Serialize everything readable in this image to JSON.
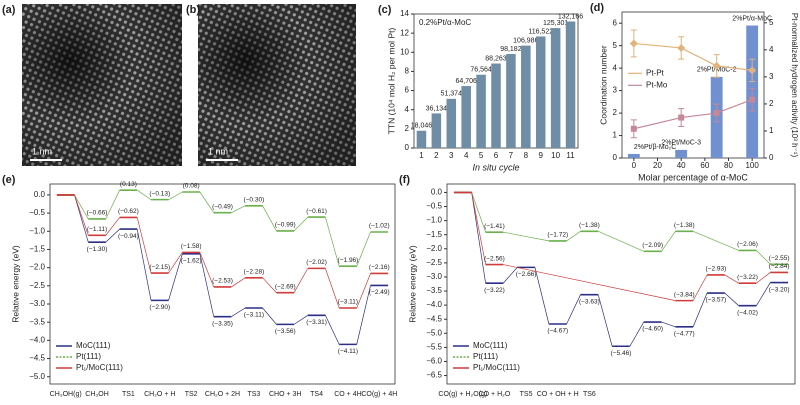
{
  "images": [
    {
      "label": "(a)",
      "scale_bar": "1 nm"
    },
    {
      "label": "(b)",
      "scale_bar": "1 nm"
    }
  ],
  "chart_data": [
    {
      "type": "bar",
      "label": "(c)",
      "annotation": "0.2%Pt/α-MoC",
      "xlabel": "In situ cycle",
      "ylabel": "TTN (10⁴ mol H₂ per mol Pt)",
      "categories": [
        "1",
        "2",
        "3",
        "4",
        "5",
        "6",
        "7",
        "8",
        "9",
        "10",
        "11"
      ],
      "values": [
        1.8046,
        3.6134,
        5.1374,
        6.4706,
        7.6564,
        8.8263,
        9.8182,
        10.6986,
        11.6522,
        12.5301,
        13.2166
      ],
      "value_labels": [
        "18,046",
        "36,134",
        "51,374",
        "64,706",
        "76,564",
        "88,263",
        "98,182",
        "106,986",
        "116,522",
        "125,301",
        "132,166"
      ],
      "color": "#6f8ea6",
      "ylim": [
        0,
        14
      ],
      "yticks": [
        0,
        2,
        4,
        6,
        8,
        10,
        12,
        14
      ]
    },
    {
      "type": "combo",
      "label": "(d)",
      "xlabel": "Molar percentage of α-MoC",
      "ylabel": "Coordination number",
      "y2label": "Pt-normalized hydrogen activity (10³ h⁻¹)",
      "x": [
        0,
        40,
        70,
        100
      ],
      "xlim": [
        -10,
        110
      ],
      "xticks": [
        0,
        20,
        40,
        60,
        80,
        100
      ],
      "ylim": [
        0,
        6.5
      ],
      "yticks": [
        0,
        1,
        2,
        3,
        4,
        5,
        6
      ],
      "y2lim": [
        0,
        5.4
      ],
      "y2ticks": [
        0,
        1,
        2,
        3,
        4,
        5
      ],
      "series": [
        {
          "name": "Pt-Pt",
          "color": "#e2b27a",
          "marker": "diamond",
          "values": [
            5.1,
            4.9,
            4.1,
            3.9
          ],
          "errors": [
            0.6,
            0.5,
            0.5,
            0.5
          ]
        },
        {
          "name": "Pt-Mo",
          "color": "#c48898",
          "marker": "square",
          "values": [
            1.3,
            1.8,
            2.0,
            2.6
          ],
          "errors": [
            0.4,
            0.4,
            0.4,
            0.5
          ]
        }
      ],
      "bars": {
        "axis": "y2",
        "color": "#7090d0",
        "values": [
          0.15,
          0.3,
          3.0,
          4.9
        ],
        "labels": [
          "2%Pt/β-Mo₂C",
          "2%Pt/MoC-3",
          "2%Pt/MoC-2",
          "2%Pt/α-MoC"
        ]
      },
      "legend": "center-left"
    },
    {
      "type": "energy",
      "label": "(e)",
      "ylabel": "Relative energy (eV)",
      "categories": [
        "CH₃OH(g)",
        "CH₃OH",
        "TS1",
        "CH₂O + H",
        "TS2",
        "CH₂O + 2H",
        "TS3",
        "CHO + 3H",
        "TS4",
        "CO + 4H",
        "CO(g) + 4H"
      ],
      "ylim": [
        -5.2,
        0.3
      ],
      "yticks": [
        {
          "value": 0,
          "label": "0.0"
        },
        {
          "value": -0.5,
          "label": "−0.5"
        },
        {
          "value": -1,
          "label": "−1.0"
        },
        {
          "value": -1.5,
          "label": "−1.5"
        },
        {
          "value": -2,
          "label": "−2.0"
        },
        {
          "value": -2.5,
          "label": "−2.5"
        },
        {
          "value": -3,
          "label": "−3.0"
        },
        {
          "value": -3.5,
          "label": "−3.5"
        },
        {
          "value": -4,
          "label": "−4.0"
        },
        {
          "value": -4.5,
          "label": "−4.5"
        },
        {
          "value": -5,
          "label": "−5.0"
        }
      ],
      "series": [
        {
          "name": "MoC(111)",
          "color": "#2d2f86",
          "values": [
            0,
            -1.3,
            -0.94,
            -2.9,
            -1.62,
            -3.35,
            -3.11,
            -3.56,
            -3.31,
            -4.11,
            -2.49
          ],
          "value_labels": [
            null,
            "(−1.30)",
            "(−0.94)",
            "(−2.90)",
            "(−1.62)",
            "(−3.35)",
            "(−3.11)",
            "(−3.56)",
            "(−3.31)",
            "(−4.11)",
            "(−2.49)"
          ]
        },
        {
          "name": "Pt(111)",
          "color": "#6ab04c",
          "values": [
            0,
            -0.66,
            0.13,
            -0.13,
            0.08,
            -0.49,
            -0.3,
            -0.99,
            -0.61,
            -1.96,
            -1.02
          ],
          "value_labels": [
            null,
            "(−0.66)",
            "(0.13)",
            "(−0.13)",
            "(0.08)",
            "(−0.49)",
            "(−0.30)",
            "(−0.99)",
            "(−0.61)",
            "(−1.96)",
            "(−1.02)"
          ]
        },
        {
          "name": "Pt₁/MoC(111)",
          "color": "#d03a3a",
          "values": [
            0,
            -1.11,
            -0.62,
            -2.15,
            -1.58,
            -2.53,
            -2.28,
            -2.69,
            -2.02,
            -3.11,
            -2.16
          ],
          "value_labels": [
            null,
            "(−1.11)",
            "(−0.62)",
            "(−2.15)",
            "(−1.58)",
            "(−2.53)",
            "(−2.28)",
            "(−2.69)",
            "(−2.02)",
            "(−3.11)",
            "(−2.16)"
          ]
        }
      ],
      "legend": "lower-left"
    },
    {
      "type": "energy",
      "label": "(f)",
      "ylabel": "Relative energy (eV)",
      "categories": [
        "CO(g) + H₂O(g)",
        "CO + H₂O",
        "TS5",
        "CO + OH + H",
        "TS6",
        null,
        null,
        null,
        null,
        null,
        null
      ],
      "ylim": [
        -6.8,
        0.3
      ],
      "yticks": [
        {
          "value": 0,
          "label": "0.0"
        },
        {
          "value": -0.5,
          "label": "−0.5"
        },
        {
          "value": -1,
          "label": "−1.0"
        },
        {
          "value": -1.5,
          "label": "−1.5"
        },
        {
          "value": -2,
          "label": "−2.0"
        },
        {
          "value": -2.5,
          "label": "−2.5"
        },
        {
          "value": -3,
          "label": "−3.0"
        },
        {
          "value": -3.5,
          "label": "−3.5"
        },
        {
          "value": -4,
          "label": "−4.0"
        },
        {
          "value": -4.5,
          "label": "−4.5"
        },
        {
          "value": -5,
          "label": "−5.0"
        },
        {
          "value": -5.5,
          "label": "−5.5"
        },
        {
          "value": -6,
          "label": "−6.0"
        },
        {
          "value": -6.5,
          "label": "−6.5"
        }
      ],
      "series": [
        {
          "name": "MoC(111)",
          "color": "#2d2f86",
          "values": [
            0,
            -3.22,
            -2.66,
            -4.67,
            -3.63,
            -5.46,
            -4.6,
            -4.77,
            -3.57,
            -4.02,
            -3.2
          ],
          "value_labels": [
            null,
            "(−3.22)",
            "(−2.66)",
            "(−4.67)",
            "(−3.63)",
            "(−5.46)",
            "(−4.60)",
            "(−4.77)",
            "(−3.57)",
            "(−4.02)",
            "(−3.20)"
          ]
        },
        {
          "name": "Pt(111)",
          "color": "#6ab04c",
          "values": [
            0,
            -1.41,
            null,
            -1.72,
            -1.38,
            null,
            -2.09,
            -1.38,
            null,
            -2.06,
            -2.55
          ],
          "value_labels": [
            null,
            "(−1.41)",
            null,
            "(−1.72)",
            "(−1.38)",
            null,
            "(−2.09)",
            "(−1.38)",
            null,
            "(−2.06)",
            "(−2.55)"
          ]
        },
        {
          "name": "Pt₁/MoC(111)",
          "color": "#d03a3a",
          "values": [
            0,
            -2.56,
            null,
            null,
            null,
            null,
            null,
            -3.84,
            -2.93,
            -3.22,
            -2.84
          ],
          "value_labels": [
            null,
            "(−2.56)",
            null,
            null,
            null,
            null,
            null,
            "(−3.84)",
            "(−2.93)",
            "(−3.22)",
            "(−2.84)"
          ]
        }
      ],
      "legend": "lower-left"
    }
  ]
}
